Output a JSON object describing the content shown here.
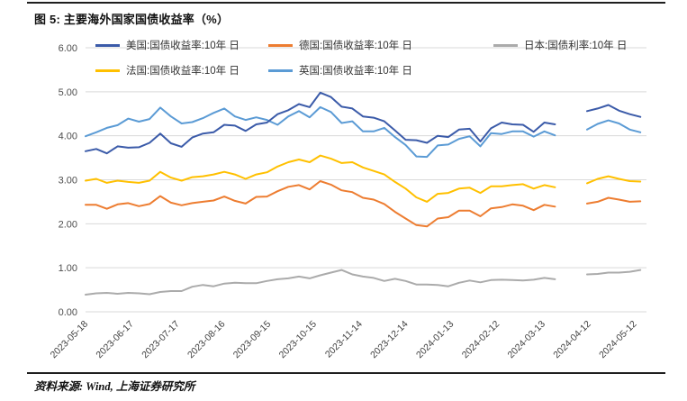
{
  "figure": {
    "title": "图 5: 主要海外国家国债收益率（%）",
    "source_note": "资料来源: Wind, 上海证券研究所"
  },
  "chart_data": {
    "type": "line",
    "title": "主要海外国家国债收益率（%）",
    "ylabel": "",
    "ylim": [
      0,
      6
    ],
    "grid": "horizontal",
    "legend_position": "top-inside",
    "y_tick_labels": [
      "6.00",
      "5.00",
      "4.00",
      "3.00",
      "2.00",
      "1.00",
      "0.00"
    ],
    "x_tick_labels": [
      "2023-05-18",
      "2023-06-17",
      "2023-07-17",
      "2023-08-16",
      "2023-09-15",
      "2023-10-15",
      "2023-11-14",
      "2023-12-14",
      "2024-01-13",
      "2024-02-12",
      "2024-03-13",
      "2024-04-12",
      "2024-05-12"
    ],
    "x_tick_interval_days": 30,
    "point_interval_days": 7,
    "x_domain_days": [
      0,
      368
    ],
    "legend_rows": [
      [
        0,
        1,
        2
      ],
      [
        3,
        4
      ]
    ],
    "draw_order": [
      2,
      3,
      1,
      4,
      0
    ],
    "series": [
      {
        "key": "us",
        "name": "美国:国债收益率:10年 日",
        "color": "#3B5BA9",
        "values": [
          3.65,
          3.7,
          3.6,
          3.76,
          3.73,
          3.74,
          3.84,
          4.05,
          3.83,
          3.75,
          3.96,
          4.05,
          4.08,
          4.25,
          4.23,
          4.11,
          4.26,
          4.3,
          4.49,
          4.58,
          4.72,
          4.65,
          4.98,
          4.88,
          4.66,
          4.62,
          4.44,
          4.41,
          4.33,
          4.12,
          3.91,
          3.9,
          3.84,
          4.0,
          3.97,
          4.14,
          4.16,
          3.87,
          4.17,
          4.3,
          4.26,
          4.25,
          4.09,
          4.3,
          4.26,
          null,
          null,
          4.56,
          4.62,
          4.7,
          4.57,
          4.49,
          4.43
        ]
      },
      {
        "key": "germany",
        "name": "德国:国债收益率:10年 日",
        "color": "#ED7D31",
        "values": [
          2.43,
          2.43,
          2.34,
          2.44,
          2.47,
          2.4,
          2.45,
          2.63,
          2.48,
          2.42,
          2.47,
          2.5,
          2.53,
          2.62,
          2.52,
          2.46,
          2.61,
          2.62,
          2.74,
          2.84,
          2.88,
          2.78,
          2.97,
          2.89,
          2.76,
          2.72,
          2.59,
          2.55,
          2.45,
          2.27,
          2.12,
          1.97,
          1.94,
          2.12,
          2.15,
          2.3,
          2.3,
          2.17,
          2.35,
          2.38,
          2.44,
          2.41,
          2.31,
          2.43,
          2.39,
          null,
          null,
          2.46,
          2.5,
          2.59,
          2.55,
          2.5,
          2.51
        ]
      },
      {
        "key": "japan",
        "name": "日本:国债利率:10年 日",
        "color": "#ABABAB",
        "values": [
          0.39,
          0.42,
          0.43,
          0.41,
          0.43,
          0.42,
          0.4,
          0.45,
          0.47,
          0.47,
          0.57,
          0.61,
          0.58,
          0.64,
          0.66,
          0.65,
          0.65,
          0.7,
          0.74,
          0.76,
          0.8,
          0.76,
          0.83,
          0.89,
          0.95,
          0.85,
          0.8,
          0.77,
          0.7,
          0.75,
          0.7,
          0.62,
          0.62,
          0.61,
          0.58,
          0.66,
          0.71,
          0.67,
          0.72,
          0.73,
          0.72,
          0.71,
          0.73,
          0.77,
          0.74,
          null,
          null,
          0.85,
          0.86,
          0.89,
          0.89,
          0.91,
          0.95
        ]
      },
      {
        "key": "france",
        "name": "法国:国债收益率:10年 日",
        "color": "#FFC000",
        "values": [
          2.98,
          3.02,
          2.93,
          2.98,
          2.95,
          2.93,
          2.98,
          3.18,
          3.05,
          2.98,
          3.06,
          3.08,
          3.12,
          3.18,
          3.12,
          3.02,
          3.12,
          3.17,
          3.3,
          3.4,
          3.46,
          3.4,
          3.55,
          3.48,
          3.38,
          3.4,
          3.28,
          3.2,
          3.12,
          2.95,
          2.8,
          2.6,
          2.5,
          2.68,
          2.7,
          2.8,
          2.82,
          2.7,
          2.85,
          2.85,
          2.88,
          2.9,
          2.8,
          2.88,
          2.83,
          null,
          null,
          2.92,
          3.02,
          3.08,
          3.02,
          2.97,
          2.96
        ]
      },
      {
        "key": "uk",
        "name": "英国:国债收益率:10年 日",
        "color": "#5B9BD5",
        "values": [
          3.99,
          4.08,
          4.18,
          4.24,
          4.39,
          4.32,
          4.38,
          4.64,
          4.44,
          4.28,
          4.31,
          4.4,
          4.52,
          4.62,
          4.44,
          4.36,
          4.42,
          4.36,
          4.25,
          4.44,
          4.56,
          4.42,
          4.65,
          4.54,
          4.29,
          4.33,
          4.1,
          4.1,
          4.18,
          3.97,
          3.79,
          3.53,
          3.52,
          3.78,
          3.8,
          3.93,
          3.99,
          3.76,
          4.06,
          4.04,
          4.1,
          4.1,
          3.98,
          4.1,
          4.01,
          null,
          null,
          4.14,
          4.27,
          4.35,
          4.28,
          4.14,
          4.08
        ]
      }
    ]
  }
}
